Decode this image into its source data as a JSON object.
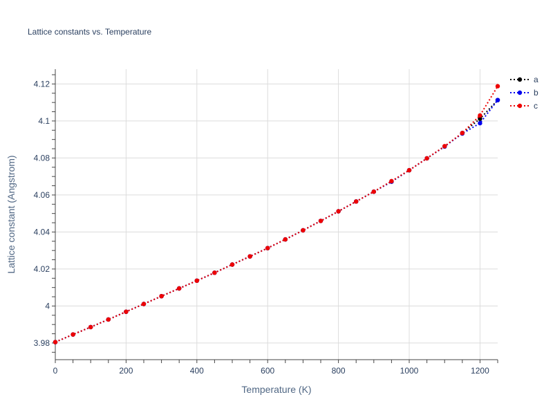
{
  "chart_data": {
    "type": "line",
    "title": "Lattice constants vs. Temperature",
    "xlabel": "Temperature (K)",
    "ylabel": "Lattice constant (Angstrom)",
    "xlim": [
      0,
      1250
    ],
    "ylim": [
      3.971,
      4.128
    ],
    "xticks": [
      0,
      200,
      400,
      600,
      800,
      1000,
      1200
    ],
    "xtick_labels": [
      "0",
      "200",
      "400",
      "600",
      "800",
      "1000",
      "1200"
    ],
    "yticks": [
      3.98,
      4.0,
      4.02,
      4.04,
      4.06,
      4.08,
      4.1,
      4.12
    ],
    "ytick_labels": [
      "3.98",
      "4",
      "4.02",
      "4.04",
      "4.06",
      "4.08",
      "4.1",
      "4.12"
    ],
    "grid": true,
    "legend_position": "top-right",
    "x": [
      0,
      50,
      100,
      150,
      200,
      250,
      300,
      350,
      400,
      450,
      500,
      550,
      600,
      650,
      700,
      750,
      800,
      850,
      900,
      950,
      1000,
      1050,
      1100,
      1150,
      1200,
      1250
    ],
    "series": [
      {
        "name": "a",
        "color": "#000000",
        "values": [
          3.9805,
          3.9846,
          3.9886,
          3.9927,
          3.9969,
          4.0011,
          4.0053,
          4.0095,
          4.0137,
          4.018,
          4.0224,
          4.0268,
          4.0313,
          4.036,
          4.0409,
          4.046,
          4.0512,
          4.0565,
          4.0618,
          4.0672,
          4.0734,
          4.0798,
          4.0862,
          4.0935,
          4.1012,
          4.1113
        ]
      },
      {
        "name": "b",
        "color": "#0000ee",
        "values": [
          3.9805,
          3.9846,
          3.9886,
          3.9927,
          3.9969,
          4.0011,
          4.0053,
          4.0095,
          4.0137,
          4.018,
          4.0224,
          4.0268,
          4.0313,
          4.036,
          4.0409,
          4.046,
          4.0512,
          4.0565,
          4.0618,
          4.0672,
          4.0734,
          4.0798,
          4.0862,
          4.0932,
          4.0988,
          4.1113
        ]
      },
      {
        "name": "c",
        "color": "#ee0000",
        "values": [
          3.9805,
          3.9846,
          3.9886,
          3.9927,
          3.9969,
          4.0011,
          4.0053,
          4.0095,
          4.0137,
          4.018,
          4.0224,
          4.0268,
          4.0313,
          4.036,
          4.0409,
          4.046,
          4.0512,
          4.0565,
          4.0618,
          4.0675,
          4.0734,
          4.0798,
          4.0864,
          4.0935,
          4.103,
          4.1188
        ]
      }
    ]
  }
}
